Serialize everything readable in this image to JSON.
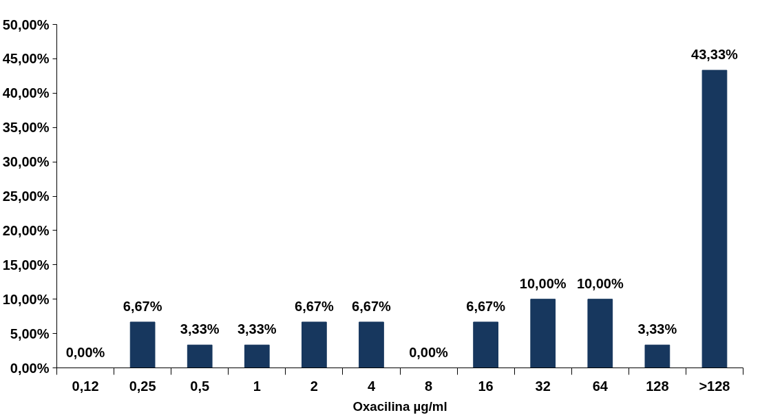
{
  "chart_data": {
    "type": "bar",
    "xlabel": "Oxacilina µg/ml",
    "categories": [
      "0,12",
      "0,25",
      "0,5",
      "1",
      "2",
      "4",
      "8",
      "16",
      "32",
      "64",
      "128",
      ">128"
    ],
    "values": [
      0,
      6.67,
      3.33,
      3.33,
      6.67,
      6.67,
      0,
      6.67,
      10,
      10,
      3.33,
      43.33
    ],
    "value_labels": [
      "0,00%",
      "6,67%",
      "3,33%",
      "3,33%",
      "6,67%",
      "6,67%",
      "0,00%",
      "6,67%",
      "10,00%",
      "10,00%",
      "3,33%",
      "43,33%"
    ],
    "color": "#17375e",
    "ylim": [
      0,
      50
    ],
    "yticks": [
      {
        "value": 0,
        "label": "0,00%"
      },
      {
        "value": 5,
        "label": "5,00%"
      },
      {
        "value": 10,
        "label": "10,00%"
      },
      {
        "value": 15,
        "label": "15,00%"
      },
      {
        "value": 20,
        "label": "20,00%"
      },
      {
        "value": 25,
        "label": "25,00%"
      },
      {
        "value": 30,
        "label": "30,00%"
      },
      {
        "value": 35,
        "label": "35,00%"
      },
      {
        "value": 40,
        "label": "40,00%"
      },
      {
        "value": 45,
        "label": "45,00%"
      },
      {
        "value": 50,
        "label": "50,00%"
      }
    ],
    "grid": false
  }
}
